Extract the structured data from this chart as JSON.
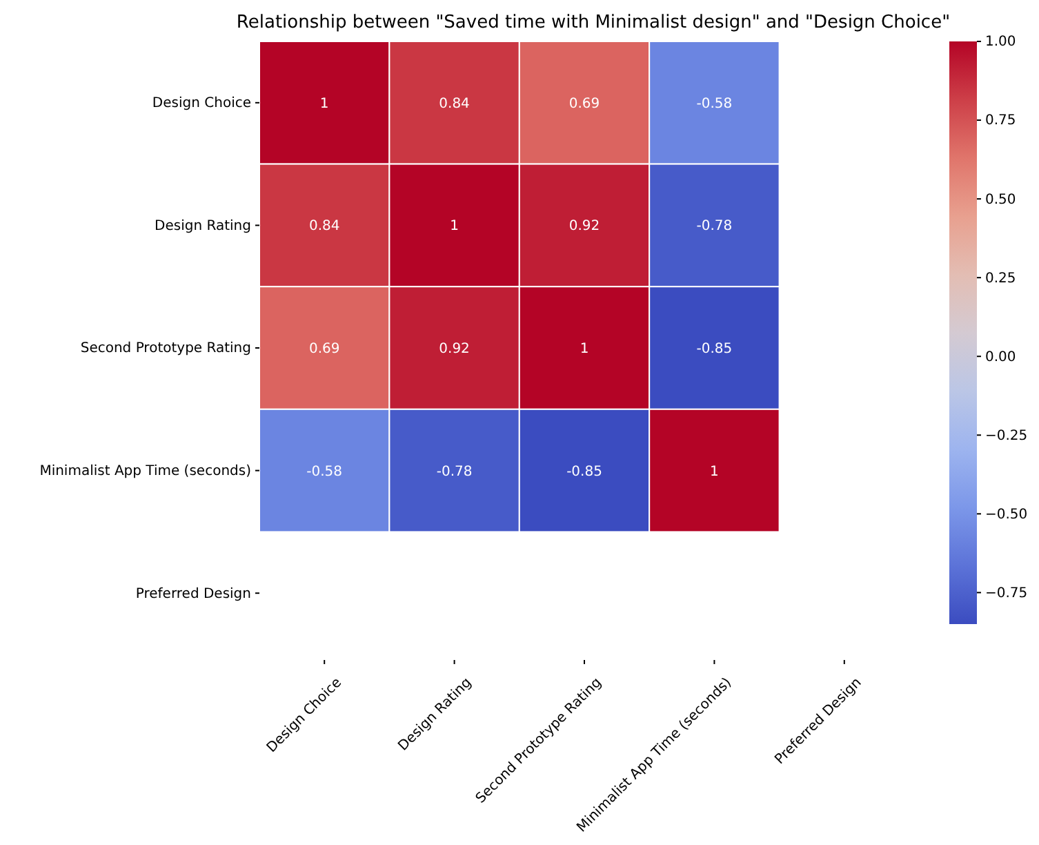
{
  "chart_data": {
    "type": "heatmap",
    "title": "Relationship between \"Saved time with Minimalist design\" and \"Design Choice\"",
    "categories": [
      "Design Choice",
      "Design Rating",
      "Second Prototype Rating",
      "Minimalist App Time (seconds)",
      "Preferred Design"
    ],
    "y_categories": [
      "Design Choice",
      "Design Rating",
      "Second Prototype Rating",
      "Minimalist App Time (seconds)",
      "Preferred Design"
    ],
    "cells": [
      [
        1,
        0.84,
        0.69,
        -0.58,
        null
      ],
      [
        0.84,
        1,
        0.92,
        -0.78,
        null
      ],
      [
        0.69,
        0.92,
        1,
        -0.85,
        null
      ],
      [
        -0.58,
        -0.78,
        -0.85,
        1,
        null
      ],
      [
        null,
        null,
        null,
        null,
        null
      ]
    ],
    "data_labels": true,
    "clim": [
      -0.85,
      1
    ],
    "cticks": [
      {
        "value": 1,
        "label": "1.00"
      },
      {
        "value": 0.75,
        "label": "0.75"
      },
      {
        "value": 0.5,
        "label": "0.50"
      },
      {
        "value": 0.25,
        "label": "0.25"
      },
      {
        "value": 0,
        "label": "0.00"
      },
      {
        "value": -0.25,
        "label": "−0.25"
      },
      {
        "value": -0.5,
        "label": "−0.50"
      },
      {
        "value": -0.75,
        "label": "−0.75"
      }
    ]
  }
}
